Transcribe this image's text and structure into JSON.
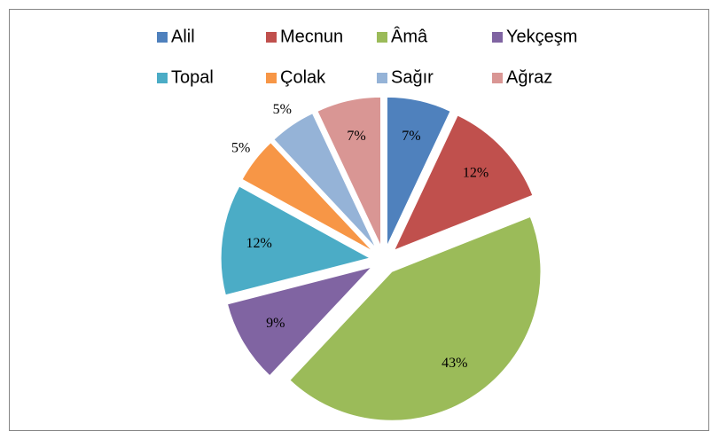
{
  "chart_data": {
    "type": "pie",
    "categories": [
      "Alil",
      "Mecnun",
      "Âmâ",
      "Yekçeşm",
      "Topal",
      "Çolak",
      "Sağır",
      "Ağraz"
    ],
    "values": [
      7,
      12,
      43,
      9,
      12,
      5,
      5,
      7
    ],
    "value_labels": [
      "7%",
      "12%",
      "43%",
      "9%",
      "12%",
      "5%",
      "5%",
      "7%"
    ],
    "colors": [
      "#4f81bd",
      "#c0504d",
      "#9bbb59",
      "#8064a2",
      "#4bacc6",
      "#f79646",
      "#95b3d7",
      "#d99694"
    ],
    "legend": "top"
  }
}
